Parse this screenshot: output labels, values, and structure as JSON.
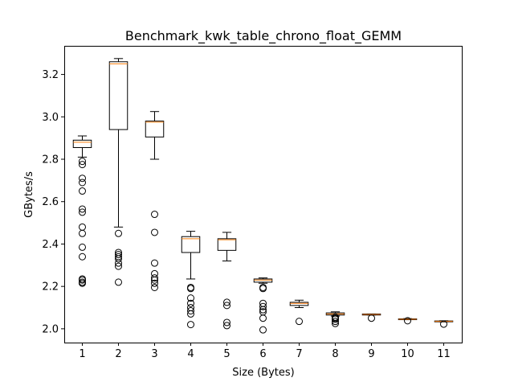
{
  "chart_data": {
    "type": "boxplot",
    "title": "Benchmark_kwk_table_chrono_float_GEMM",
    "xlabel": "Size (Bytes)",
    "ylabel": "GBytes/s",
    "ylim": [
      1.935,
      3.335
    ],
    "xlim": [
      0.5,
      11.5
    ],
    "yticks": [
      "2.0",
      "2.2",
      "2.4",
      "2.6",
      "2.8",
      "3.0",
      "3.2"
    ],
    "grid": false,
    "legend": "none",
    "colors": {
      "box": "#000000",
      "median": "#ff7f0e",
      "flier": "#000000"
    },
    "categories": [
      "1",
      "2",
      "3",
      "4",
      "5",
      "6",
      "7",
      "8",
      "9",
      "10",
      "11"
    ],
    "boxes": [
      {
        "x": "1",
        "whisker_low": 2.81,
        "q1": 2.855,
        "median": 2.88,
        "q3": 2.89,
        "whisker_high": 2.91,
        "fliers": [
          2.215,
          2.22,
          2.23,
          2.235,
          2.34,
          2.385,
          2.45,
          2.48,
          2.55,
          2.565,
          2.65,
          2.69,
          2.71,
          2.775,
          2.79
        ]
      },
      {
        "x": "2",
        "whisker_low": 2.48,
        "q1": 2.94,
        "median": 3.25,
        "q3": 3.26,
        "whisker_high": 3.275,
        "fliers": [
          2.22,
          2.295,
          2.31,
          2.33,
          2.34,
          2.35,
          2.36,
          2.45
        ]
      },
      {
        "x": "3",
        "whisker_low": 2.8,
        "q1": 2.905,
        "median": 2.975,
        "q3": 2.98,
        "whisker_high": 3.025,
        "fliers": [
          2.195,
          2.215,
          2.23,
          2.24,
          2.26,
          2.31,
          2.455,
          2.54
        ]
      },
      {
        "x": "4",
        "whisker_low": 2.235,
        "q1": 2.36,
        "median": 2.425,
        "q3": 2.435,
        "whisker_high": 2.46,
        "fliers": [
          2.02,
          2.07,
          2.085,
          2.1,
          2.12,
          2.145,
          2.19,
          2.195
        ]
      },
      {
        "x": "5",
        "whisker_low": 2.32,
        "q1": 2.37,
        "median": 2.42,
        "q3": 2.425,
        "whisker_high": 2.455,
        "fliers": [
          2.015,
          2.03,
          2.11,
          2.125
        ]
      },
      {
        "x": "6",
        "whisker_low": 2.215,
        "q1": 2.22,
        "median": 2.23,
        "q3": 2.235,
        "whisker_high": 2.24,
        "fliers": [
          1.995,
          2.05,
          2.08,
          2.09,
          2.105,
          2.12,
          2.19,
          2.195
        ]
      },
      {
        "x": "7",
        "whisker_low": 2.1,
        "q1": 2.11,
        "median": 2.12,
        "q3": 2.125,
        "whisker_high": 2.135,
        "fliers": [
          2.035
        ]
      },
      {
        "x": "8",
        "whisker_low": 2.06,
        "q1": 2.065,
        "median": 2.07,
        "q3": 2.075,
        "whisker_high": 2.08,
        "fliers": [
          2.025,
          2.035,
          2.045,
          2.05,
          2.055
        ]
      },
      {
        "x": "9",
        "whisker_low": 2.065,
        "q1": 2.065,
        "median": 2.068,
        "q3": 2.07,
        "whisker_high": 2.07,
        "fliers": [
          2.05
        ]
      },
      {
        "x": "10",
        "whisker_low": 2.043,
        "q1": 2.043,
        "median": 2.045,
        "q3": 2.047,
        "whisker_high": 2.048,
        "fliers": [
          2.038
        ]
      },
      {
        "x": "11",
        "whisker_low": 2.033,
        "q1": 2.033,
        "median": 2.035,
        "q3": 2.037,
        "whisker_high": 2.038,
        "fliers": [
          2.022
        ]
      }
    ]
  }
}
